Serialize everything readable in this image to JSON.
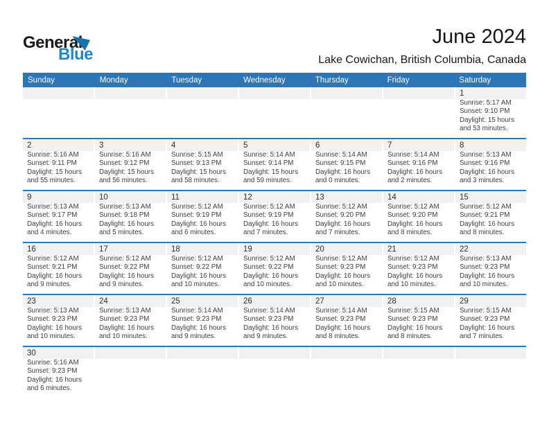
{
  "logo": {
    "part1": "General",
    "part2": "Blue",
    "triangle_icon": "blue-pennant-triangle"
  },
  "header": {
    "title": "June 2024",
    "subtitle": "Lake Cowichan, British Columbia, Canada"
  },
  "colors": {
    "header_blue": "#2e75b6",
    "separator_blue": "#2779be",
    "band_gray": "#f1f1f1",
    "logo_blue": "#1e88c7"
  },
  "calendar": {
    "day_headers": [
      "Sunday",
      "Monday",
      "Tuesday",
      "Wednesday",
      "Thursday",
      "Friday",
      "Saturday"
    ],
    "weeks": [
      [
        null,
        null,
        null,
        null,
        null,
        null,
        {
          "day": "1",
          "sunrise": "Sunrise: 5:17 AM",
          "sunset": "Sunset: 9:10 PM",
          "daylight1": "Daylight: 15 hours",
          "daylight2": "and 53 minutes."
        }
      ],
      [
        {
          "day": "2",
          "sunrise": "Sunrise: 5:16 AM",
          "sunset": "Sunset: 9:11 PM",
          "daylight1": "Daylight: 15 hours",
          "daylight2": "and 55 minutes."
        },
        {
          "day": "3",
          "sunrise": "Sunrise: 5:16 AM",
          "sunset": "Sunset: 9:12 PM",
          "daylight1": "Daylight: 15 hours",
          "daylight2": "and 56 minutes."
        },
        {
          "day": "4",
          "sunrise": "Sunrise: 5:15 AM",
          "sunset": "Sunset: 9:13 PM",
          "daylight1": "Daylight: 15 hours",
          "daylight2": "and 58 minutes."
        },
        {
          "day": "5",
          "sunrise": "Sunrise: 5:14 AM",
          "sunset": "Sunset: 9:14 PM",
          "daylight1": "Daylight: 15 hours",
          "daylight2": "and 59 minutes."
        },
        {
          "day": "6",
          "sunrise": "Sunrise: 5:14 AM",
          "sunset": "Sunset: 9:15 PM",
          "daylight1": "Daylight: 16 hours",
          "daylight2": "and 0 minutes."
        },
        {
          "day": "7",
          "sunrise": "Sunrise: 5:14 AM",
          "sunset": "Sunset: 9:16 PM",
          "daylight1": "Daylight: 16 hours",
          "daylight2": "and 2 minutes."
        },
        {
          "day": "8",
          "sunrise": "Sunrise: 5:13 AM",
          "sunset": "Sunset: 9:16 PM",
          "daylight1": "Daylight: 16 hours",
          "daylight2": "and 3 minutes."
        }
      ],
      [
        {
          "day": "9",
          "sunrise": "Sunrise: 5:13 AM",
          "sunset": "Sunset: 9:17 PM",
          "daylight1": "Daylight: 16 hours",
          "daylight2": "and 4 minutes."
        },
        {
          "day": "10",
          "sunrise": "Sunrise: 5:13 AM",
          "sunset": "Sunset: 9:18 PM",
          "daylight1": "Daylight: 16 hours",
          "daylight2": "and 5 minutes."
        },
        {
          "day": "11",
          "sunrise": "Sunrise: 5:12 AM",
          "sunset": "Sunset: 9:19 PM",
          "daylight1": "Daylight: 16 hours",
          "daylight2": "and 6 minutes."
        },
        {
          "day": "12",
          "sunrise": "Sunrise: 5:12 AM",
          "sunset": "Sunset: 9:19 PM",
          "daylight1": "Daylight: 16 hours",
          "daylight2": "and 7 minutes."
        },
        {
          "day": "13",
          "sunrise": "Sunrise: 5:12 AM",
          "sunset": "Sunset: 9:20 PM",
          "daylight1": "Daylight: 16 hours",
          "daylight2": "and 7 minutes."
        },
        {
          "day": "14",
          "sunrise": "Sunrise: 5:12 AM",
          "sunset": "Sunset: 9:20 PM",
          "daylight1": "Daylight: 16 hours",
          "daylight2": "and 8 minutes."
        },
        {
          "day": "15",
          "sunrise": "Sunrise: 5:12 AM",
          "sunset": "Sunset: 9:21 PM",
          "daylight1": "Daylight: 16 hours",
          "daylight2": "and 8 minutes."
        }
      ],
      [
        {
          "day": "16",
          "sunrise": "Sunrise: 5:12 AM",
          "sunset": "Sunset: 9:21 PM",
          "daylight1": "Daylight: 16 hours",
          "daylight2": "and 9 minutes."
        },
        {
          "day": "17",
          "sunrise": "Sunrise: 5:12 AM",
          "sunset": "Sunset: 9:22 PM",
          "daylight1": "Daylight: 16 hours",
          "daylight2": "and 9 minutes."
        },
        {
          "day": "18",
          "sunrise": "Sunrise: 5:12 AM",
          "sunset": "Sunset: 9:22 PM",
          "daylight1": "Daylight: 16 hours",
          "daylight2": "and 10 minutes."
        },
        {
          "day": "19",
          "sunrise": "Sunrise: 5:12 AM",
          "sunset": "Sunset: 9:22 PM",
          "daylight1": "Daylight: 16 hours",
          "daylight2": "and 10 minutes."
        },
        {
          "day": "20",
          "sunrise": "Sunrise: 5:12 AM",
          "sunset": "Sunset: 9:23 PM",
          "daylight1": "Daylight: 16 hours",
          "daylight2": "and 10 minutes."
        },
        {
          "day": "21",
          "sunrise": "Sunrise: 5:12 AM",
          "sunset": "Sunset: 9:23 PM",
          "daylight1": "Daylight: 16 hours",
          "daylight2": "and 10 minutes."
        },
        {
          "day": "22",
          "sunrise": "Sunrise: 5:13 AM",
          "sunset": "Sunset: 9:23 PM",
          "daylight1": "Daylight: 16 hours",
          "daylight2": "and 10 minutes."
        }
      ],
      [
        {
          "day": "23",
          "sunrise": "Sunrise: 5:13 AM",
          "sunset": "Sunset: 9:23 PM",
          "daylight1": "Daylight: 16 hours",
          "daylight2": "and 10 minutes."
        },
        {
          "day": "24",
          "sunrise": "Sunrise: 5:13 AM",
          "sunset": "Sunset: 9:23 PM",
          "daylight1": "Daylight: 16 hours",
          "daylight2": "and 10 minutes."
        },
        {
          "day": "25",
          "sunrise": "Sunrise: 5:14 AM",
          "sunset": "Sunset: 9:23 PM",
          "daylight1": "Daylight: 16 hours",
          "daylight2": "and 9 minutes."
        },
        {
          "day": "26",
          "sunrise": "Sunrise: 5:14 AM",
          "sunset": "Sunset: 9:23 PM",
          "daylight1": "Daylight: 16 hours",
          "daylight2": "and 9 minutes."
        },
        {
          "day": "27",
          "sunrise": "Sunrise: 5:14 AM",
          "sunset": "Sunset: 9:23 PM",
          "daylight1": "Daylight: 16 hours",
          "daylight2": "and 8 minutes."
        },
        {
          "day": "28",
          "sunrise": "Sunrise: 5:15 AM",
          "sunset": "Sunset: 9:23 PM",
          "daylight1": "Daylight: 16 hours",
          "daylight2": "and 8 minutes."
        },
        {
          "day": "29",
          "sunrise": "Sunrise: 5:15 AM",
          "sunset": "Sunset: 9:23 PM",
          "daylight1": "Daylight: 16 hours",
          "daylight2": "and 7 minutes."
        }
      ],
      [
        {
          "day": "30",
          "sunrise": "Sunrise: 5:16 AM",
          "sunset": "Sunset: 9:23 PM",
          "daylight1": "Daylight: 16 hours",
          "daylight2": "and 6 minutes."
        },
        null,
        null,
        null,
        null,
        null,
        null
      ]
    ]
  }
}
